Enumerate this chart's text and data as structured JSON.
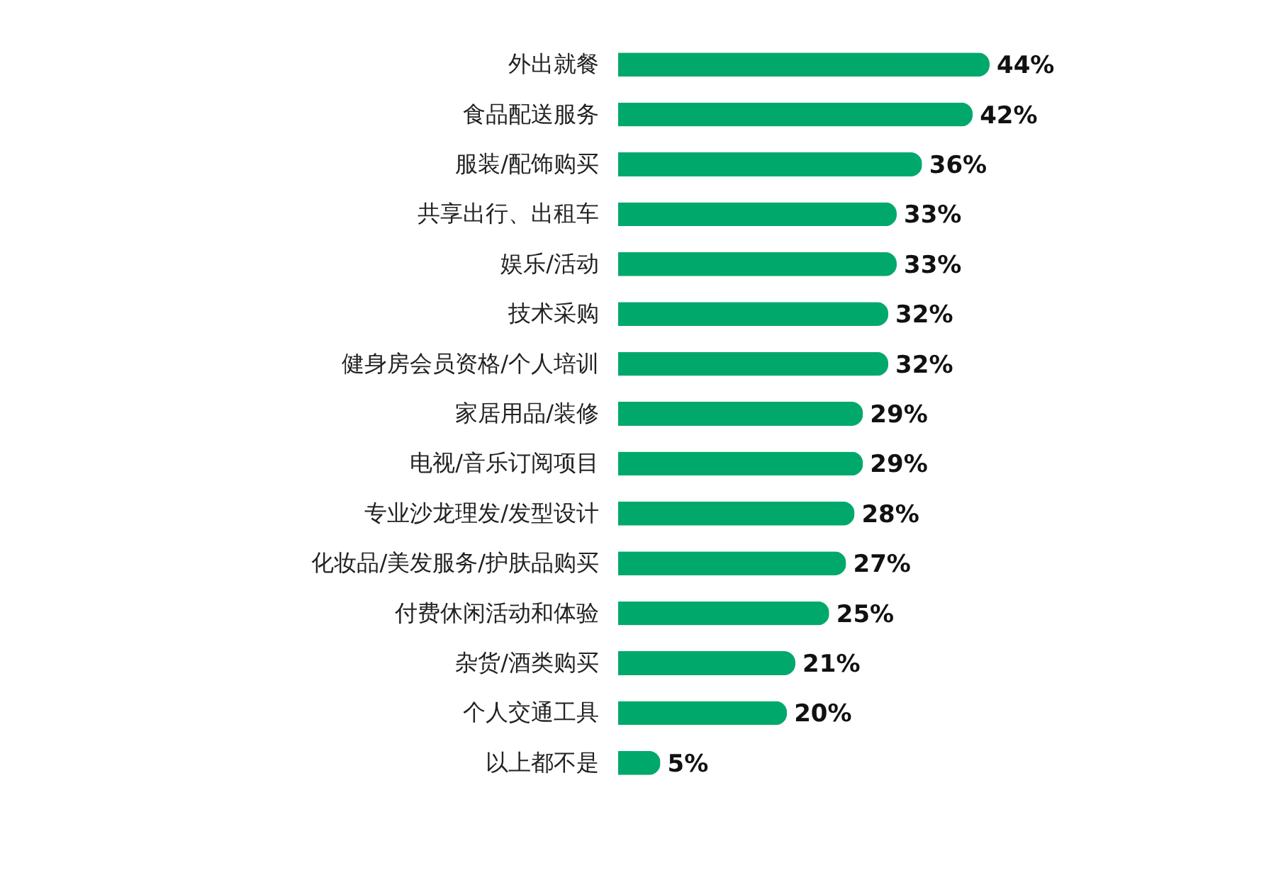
{
  "chart_data": {
    "type": "bar",
    "orientation": "horizontal",
    "color": "#00a96b",
    "tick_labels": "y",
    "categories": [
      "外出就餐",
      "食品配送服务",
      "服装/配饰购买",
      "共享出行、出租车",
      "娱乐/活动",
      "技术采购",
      "健身房会员资格/个人培训",
      "家居用品/装修",
      "电视/音乐订阅项目",
      "专业沙龙理发/发型设计",
      "化妆品/美发服务/护肤品购买",
      "付费休闲活动和体验",
      "杂货/酒类购买",
      "个人交通工具",
      "以上都不是"
    ],
    "values": [
      44,
      42,
      36,
      33,
      33,
      32,
      32,
      29,
      29,
      28,
      27,
      25,
      21,
      20,
      5
    ],
    "value_labels": [
      "44%",
      "42%",
      "36%",
      "33%",
      "33%",
      "32%",
      "32%",
      "29%",
      "29%",
      "28%",
      "27%",
      "25%",
      "21%",
      "20%",
      "5%"
    ]
  }
}
